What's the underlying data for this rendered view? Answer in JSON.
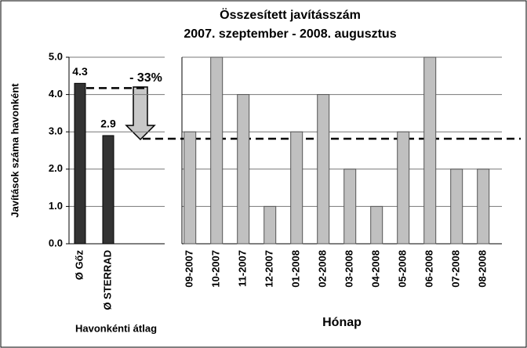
{
  "chart_data": {
    "type": "bar",
    "title": "Összesített javításszám",
    "subtitle": "2007. szeptember - 2008. augusztus",
    "ylabel": "Javítások száma havonként",
    "ylim": [
      0,
      5
    ],
    "yticks": [
      {
        "value": 0,
        "label": "0.0"
      },
      {
        "value": 1,
        "label": "1.0"
      },
      {
        "value": 2,
        "label": "2.0"
      },
      {
        "value": 3,
        "label": "3.0"
      },
      {
        "value": 4,
        "label": "4.0"
      },
      {
        "value": 5,
        "label": "5.0"
      }
    ],
    "grid": true,
    "averages": {
      "xlabel": "Havonkénti átlag",
      "categories": [
        "Ø Gőz",
        "Ø STERRAD"
      ],
      "values": [
        4.3,
        2.9
      ],
      "color": "#333333"
    },
    "annotation": "- 33%",
    "months": {
      "xlabel": "Hónap",
      "categories": [
        "09-2007",
        "10-2007",
        "11-2007",
        "12-2007",
        "01-2008",
        "02-2008",
        "03-2008",
        "04-2008",
        "05-2008",
        "06-2008",
        "07-2008",
        "08-2008"
      ],
      "values": [
        3,
        5,
        4,
        1,
        3,
        4,
        2,
        1,
        3,
        5,
        2,
        2
      ],
      "color": "#c0c0c0"
    }
  }
}
